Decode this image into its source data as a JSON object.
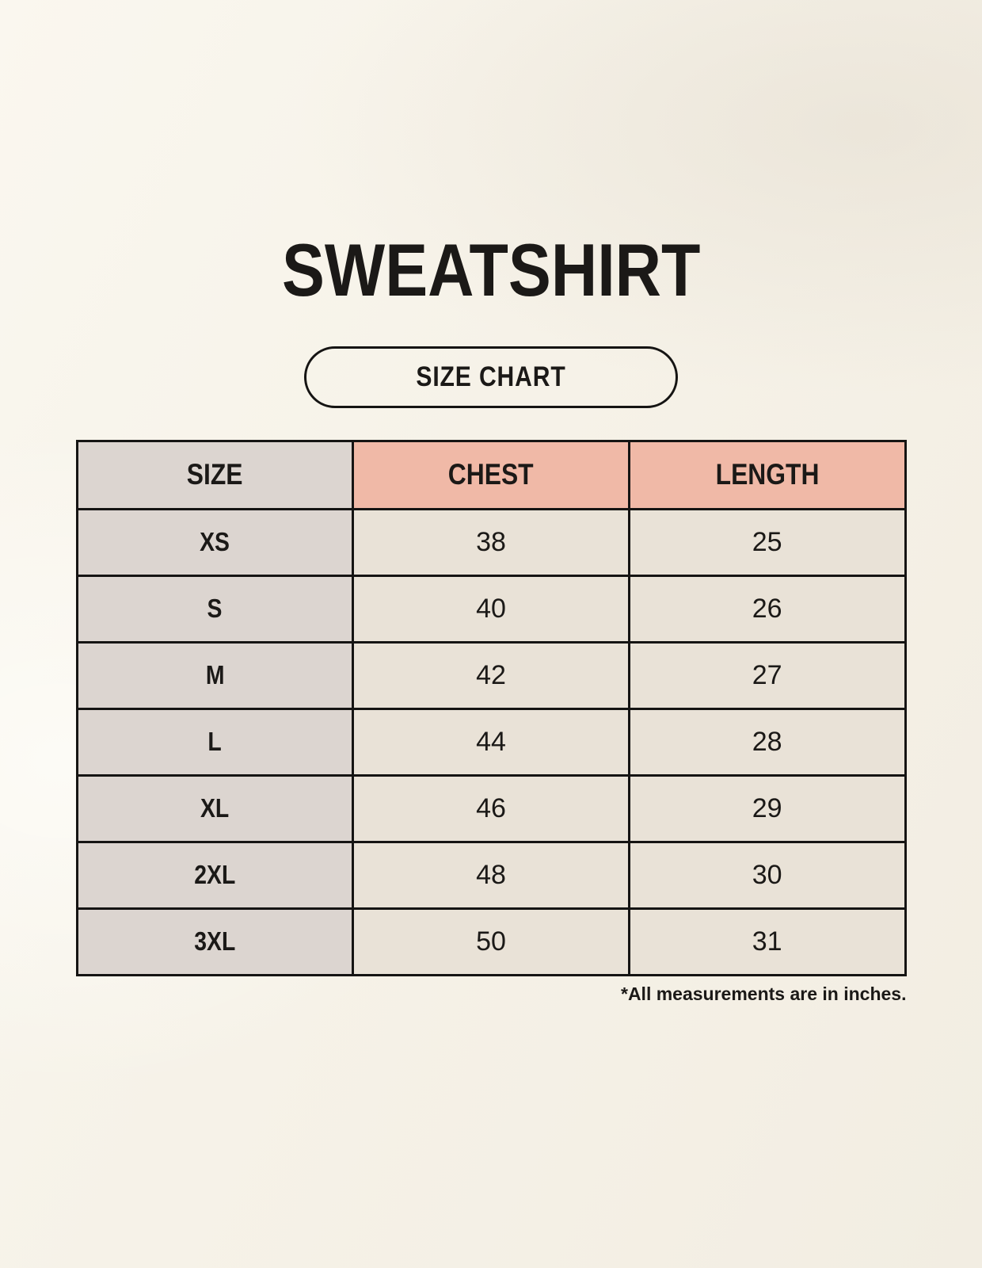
{
  "page": {
    "title": "SWEATSHIRT",
    "badge_label": "SIZE CHART",
    "footnote": "*All measurements are in inches."
  },
  "table": {
    "columns": [
      "SIZE",
      "CHEST",
      "LENGTH"
    ],
    "rows": [
      {
        "size": "XS",
        "chest": "38",
        "length": "25"
      },
      {
        "size": "S",
        "chest": "40",
        "length": "26"
      },
      {
        "size": "M",
        "chest": "42",
        "length": "27"
      },
      {
        "size": "L",
        "chest": "44",
        "length": "28"
      },
      {
        "size": "XL",
        "chest": "46",
        "length": "29"
      },
      {
        "size": "2XL",
        "chest": "48",
        "length": "30"
      },
      {
        "size": "3XL",
        "chest": "50",
        "length": "31"
      }
    ],
    "units": "inches"
  },
  "colors": {
    "background": "#f7f3ea",
    "header_accent_bg": "#f0b9a7",
    "size_column_bg": "#dcd5d0",
    "value_cell_bg": "#e9e2d7",
    "table_border": "#151413",
    "text": "#1b1917"
  }
}
